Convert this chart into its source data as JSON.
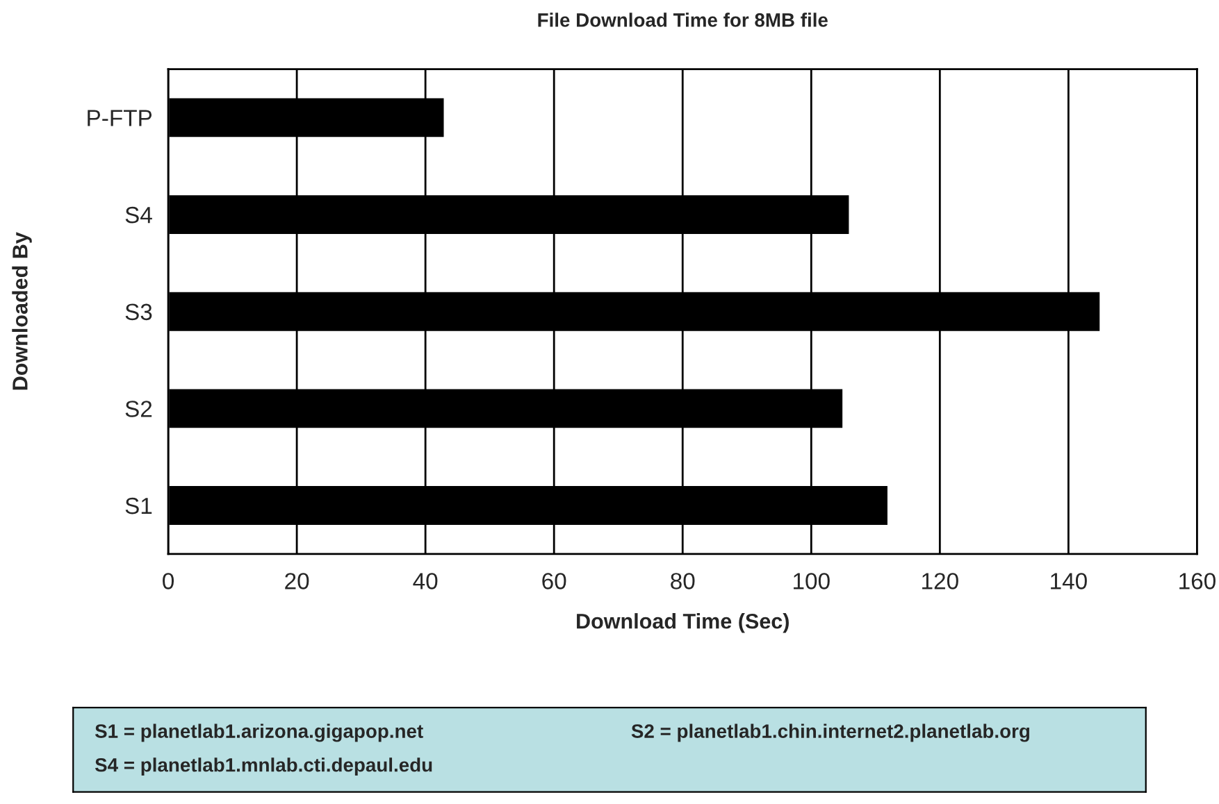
{
  "chart_data": {
    "type": "bar",
    "orientation": "horizontal",
    "title": "File Download Time for 8MB file",
    "xlabel": "Download Time (Sec)",
    "ylabel": "Downloaded By",
    "categories": [
      "P-FTP",
      "S4",
      "S3",
      "S2",
      "S1"
    ],
    "values": [
      43,
      106,
      145,
      105,
      112
    ],
    "color": "#000000",
    "xlim": [
      0,
      160
    ],
    "xticks": [
      0,
      20,
      40,
      60,
      80,
      100,
      120,
      140,
      160
    ],
    "grid": "x",
    "legend": false,
    "annotations": [
      "S1 = planetlab1.arizona.gigapop.net",
      "S2 = planetlab1.chin.internet2.planetlab.org",
      "S4 = planetlab1.mnlab.cti.depaul.edu"
    ]
  }
}
